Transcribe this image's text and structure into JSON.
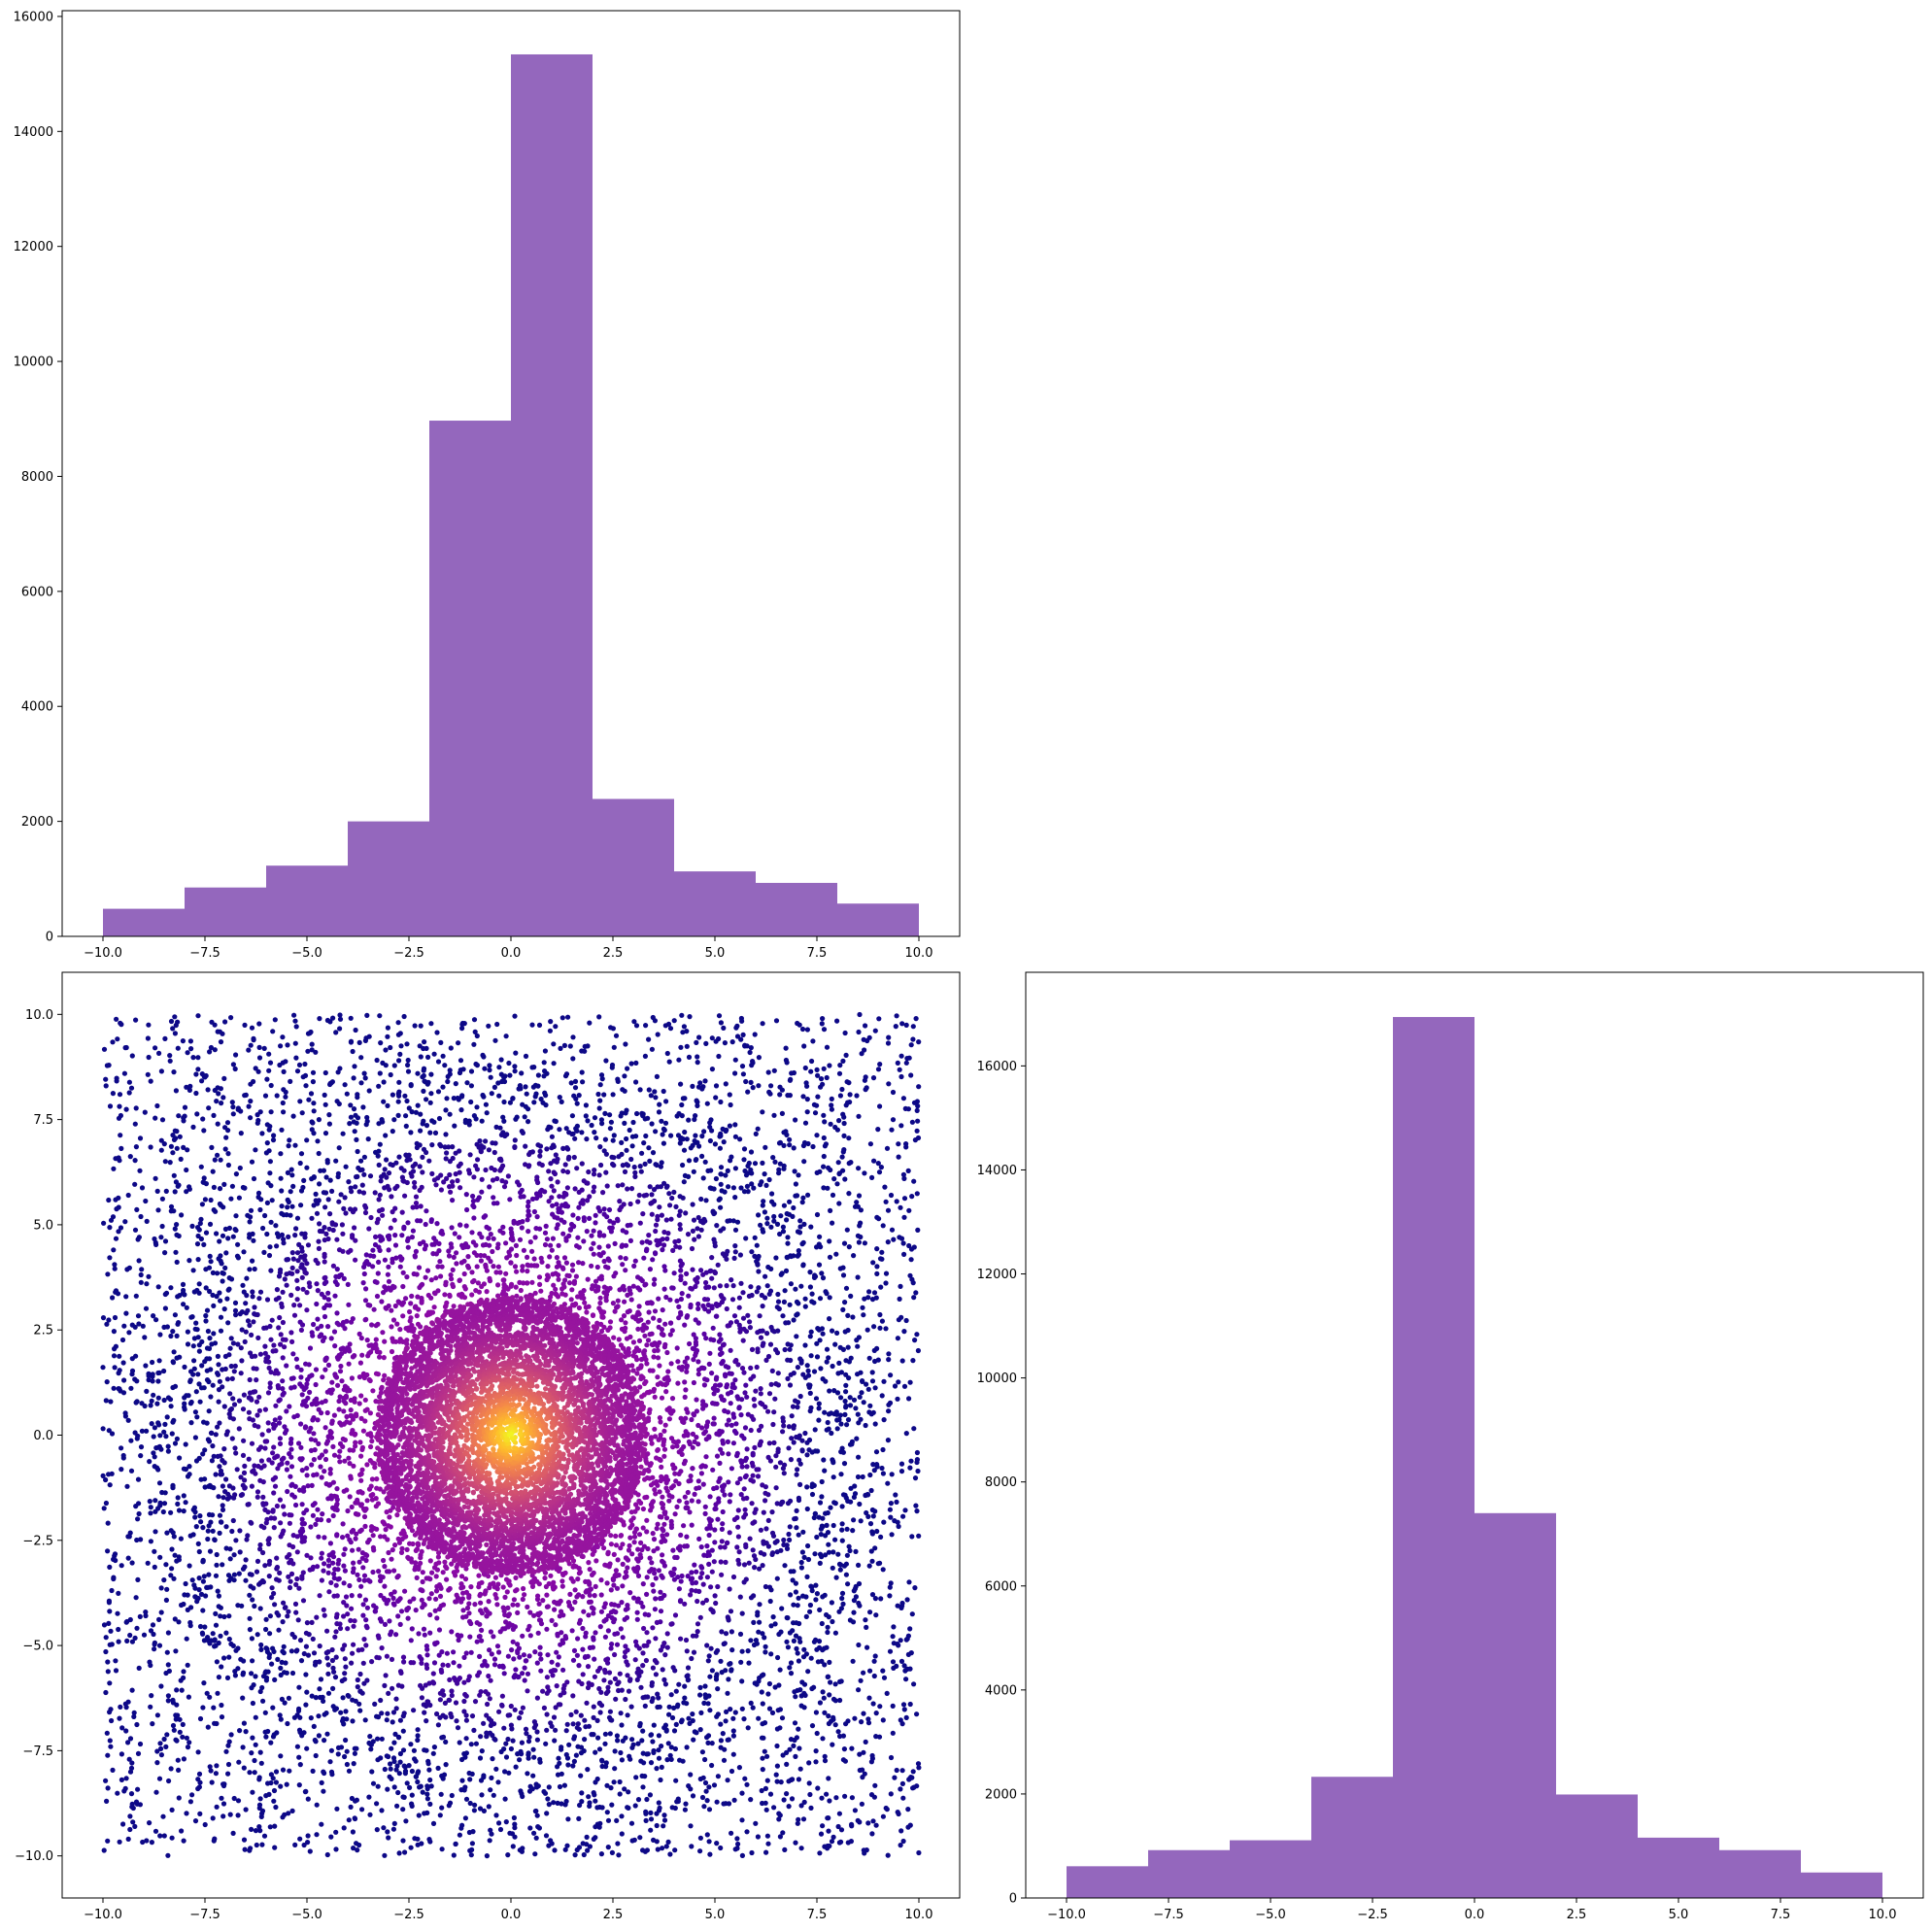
{
  "chart_data": [
    {
      "id": "hist-x",
      "type": "bar",
      "title": "",
      "xlabel": "",
      "ylabel": "",
      "bin_edges": [
        -10,
        -8,
        -6,
        -4,
        -2,
        0,
        2,
        4,
        6,
        8,
        10
      ],
      "values": [
        480,
        850,
        1230,
        2000,
        8970,
        15340,
        2390,
        1130,
        930,
        570
      ],
      "xlim": [
        -11.0,
        11.0
      ],
      "ylim": [
        0,
        16100
      ],
      "xticks": [
        -10.0,
        -7.5,
        -5.0,
        -2.5,
        0.0,
        2.5,
        5.0,
        7.5,
        10.0
      ],
      "xtick_labels": [
        "−10.0",
        "−7.5",
        "−5.0",
        "−2.5",
        "0.0",
        "2.5",
        "5.0",
        "7.5",
        "10.0"
      ],
      "yticks": [
        0,
        2000,
        4000,
        6000,
        8000,
        10000,
        12000,
        14000,
        16000
      ],
      "ytick_labels": [
        "0",
        "2000",
        "4000",
        "6000",
        "8000",
        "10000",
        "12000",
        "14000",
        "16000"
      ],
      "color": "#9467bd",
      "grid": false
    },
    {
      "id": "scatter-xy",
      "type": "scatter",
      "title": "",
      "xlabel": "",
      "ylabel": "",
      "x_range": [
        -10,
        10
      ],
      "y_range": [
        -10,
        10
      ],
      "center": [
        0,
        0
      ],
      "dense_core_radius": 3.3,
      "colormap": "plasma",
      "color_encodes": "point density (bright yellow at center, dark purple at edges)",
      "xlim": [
        -11.0,
        11.0
      ],
      "ylim": [
        -11.0,
        11.0
      ],
      "xticks": [
        -10.0,
        -7.5,
        -5.0,
        -2.5,
        0.0,
        2.5,
        5.0,
        7.5,
        10.0
      ],
      "xtick_labels": [
        "−10.0",
        "−7.5",
        "−5.0",
        "−2.5",
        "0.0",
        "2.5",
        "5.0",
        "7.5",
        "10.0"
      ],
      "yticks": [
        -10.0,
        -7.5,
        -5.0,
        -2.5,
        0.0,
        2.5,
        5.0,
        7.5,
        10.0
      ],
      "ytick_labels": [
        "−10.0",
        "−7.5",
        "−5.0",
        "−2.5",
        "0.0",
        "2.5",
        "5.0",
        "7.5",
        "10.0"
      ],
      "grid": false
    },
    {
      "id": "hist-y",
      "type": "bar",
      "title": "",
      "xlabel": "",
      "ylabel": "",
      "bin_edges": [
        -10,
        -8,
        -6,
        -4,
        -2,
        0,
        2,
        4,
        6,
        8,
        10
      ],
      "values": [
        610,
        920,
        1110,
        2330,
        16940,
        7400,
        1990,
        1160,
        920,
        490
      ],
      "xlim": [
        -11.0,
        11.0
      ],
      "ylim": [
        0,
        17800
      ],
      "xticks": [
        -10.0,
        -7.5,
        -5.0,
        -2.5,
        0.0,
        2.5,
        5.0,
        7.5,
        10.0
      ],
      "xtick_labels": [
        "−10.0",
        "−7.5",
        "−5.0",
        "−2.5",
        "0.0",
        "2.5",
        "5.0",
        "7.5",
        "10.0"
      ],
      "yticks": [
        0,
        2000,
        4000,
        6000,
        8000,
        10000,
        12000,
        14000,
        16000
      ],
      "ytick_labels": [
        "0",
        "2000",
        "4000",
        "6000",
        "8000",
        "10000",
        "12000",
        "14000",
        "16000"
      ],
      "color": "#9467bd",
      "grid": false
    }
  ]
}
